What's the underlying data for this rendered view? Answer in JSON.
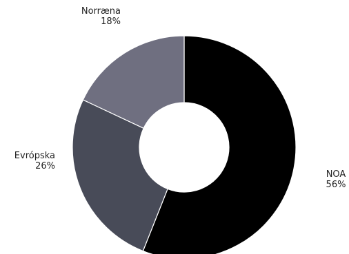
{
  "chart_data": {
    "type": "pie",
    "donut": true,
    "legend": "none",
    "slices": [
      {
        "label": "NOA",
        "value": 56,
        "value_label": "56%",
        "color": "#000000"
      },
      {
        "label": "Evrópska",
        "value": 26,
        "value_label": "26%",
        "color": "#484b58"
      },
      {
        "label": "Norræna",
        "value": 18,
        "value_label": "18%",
        "color": "#6f6f80"
      }
    ]
  }
}
